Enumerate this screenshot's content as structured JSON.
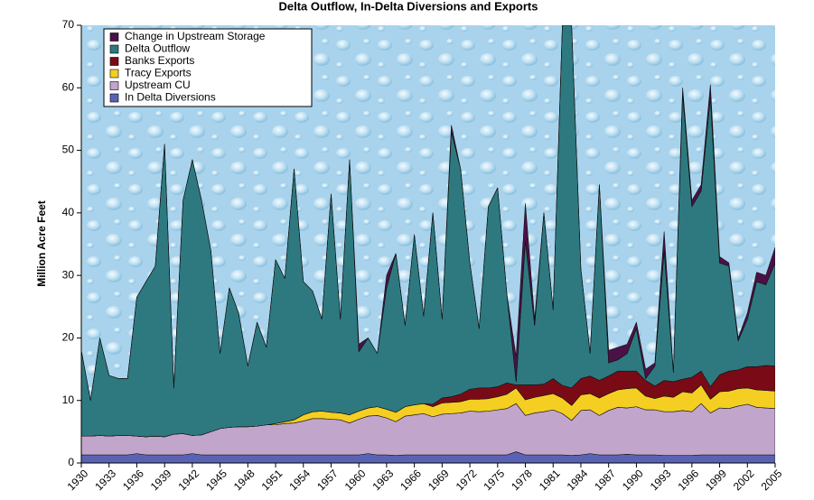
{
  "chart_data": {
    "type": "stacked_area",
    "title": "Delta Outflow, In-Delta Diversions and Exports",
    "y_label": "Million Acre Feet",
    "x": [
      1930,
      1931,
      1932,
      1933,
      1934,
      1935,
      1936,
      1937,
      1938,
      1939,
      1940,
      1941,
      1942,
      1943,
      1944,
      1945,
      1946,
      1947,
      1948,
      1949,
      1950,
      1951,
      1952,
      1953,
      1954,
      1955,
      1956,
      1957,
      1958,
      1959,
      1960,
      1961,
      1962,
      1963,
      1964,
      1965,
      1966,
      1967,
      1968,
      1969,
      1970,
      1971,
      1972,
      1973,
      1974,
      1975,
      1976,
      1977,
      1978,
      1979,
      1980,
      1981,
      1982,
      1983,
      1984,
      1985,
      1986,
      1987,
      1988,
      1989,
      1990,
      1991,
      1992,
      1993,
      1994,
      1995,
      1996,
      1997,
      1998,
      1999,
      2000,
      2001,
      2002,
      2003,
      2004,
      2005
    ],
    "series": [
      {
        "name": "In Delta Diversions",
        "color": "#5a63b3",
        "values": [
          1.3,
          1.3,
          1.3,
          1.3,
          1.3,
          1.3,
          1.5,
          1.3,
          1.3,
          1.3,
          1.3,
          1.3,
          1.5,
          1.3,
          1.3,
          1.3,
          1.3,
          1.3,
          1.3,
          1.3,
          1.3,
          1.3,
          1.3,
          1.3,
          1.3,
          1.3,
          1.3,
          1.3,
          1.3,
          1.3,
          1.3,
          1.5,
          1.3,
          1.3,
          1.2,
          1.3,
          1.3,
          1.3,
          1.3,
          1.3,
          1.3,
          1.3,
          1.3,
          1.3,
          1.3,
          1.3,
          1.3,
          1.8,
          1.3,
          1.3,
          1.3,
          1.3,
          1.3,
          1.2,
          1.3,
          1.5,
          1.3,
          1.3,
          1.3,
          1.4,
          1.3,
          1.3,
          1.3,
          1.2,
          1.2,
          1.2,
          1.2,
          1.3,
          1.3,
          1.3,
          1.3,
          1.3,
          1.3,
          1.3,
          1.3,
          1.3
        ]
      },
      {
        "name": "Upstream CU",
        "color": "#c2a5cb",
        "values": [
          3.0,
          3.0,
          3.1,
          3.0,
          3.1,
          3.1,
          2.8,
          2.9,
          3.0,
          2.9,
          3.3,
          3.4,
          2.9,
          3.2,
          3.7,
          4.2,
          4.4,
          4.5,
          4.5,
          4.6,
          4.8,
          4.8,
          5.0,
          5.1,
          5.4,
          5.8,
          5.8,
          5.7,
          5.6,
          5.1,
          5.7,
          6.0,
          6.3,
          5.9,
          5.4,
          6.2,
          6.4,
          6.6,
          6.1,
          6.5,
          6.6,
          6.7,
          7.0,
          6.9,
          7.0,
          7.2,
          7.4,
          7.7,
          6.3,
          6.7,
          6.9,
          7.2,
          6.6,
          5.6,
          7.1,
          7.0,
          6.3,
          7.1,
          7.6,
          7.4,
          7.7,
          7.2,
          7.2,
          7.0,
          7.0,
          7.2,
          7.0,
          8.2,
          6.7,
          7.5,
          7.4,
          7.8,
          8.1,
          7.6,
          7.5,
          7.4
        ]
      },
      {
        "name": "Tracy Exports",
        "color": "#f4cf22",
        "values": [
          0,
          0,
          0,
          0,
          0,
          0,
          0,
          0,
          0,
          0,
          0,
          0,
          0,
          0,
          0,
          0,
          0,
          0,
          0,
          0,
          0,
          0.2,
          0.3,
          0.5,
          1.0,
          1.1,
          1.2,
          1.1,
          1.1,
          1.3,
          1.3,
          1.3,
          1.4,
          1.4,
          1.5,
          1.5,
          1.6,
          1.6,
          1.6,
          1.8,
          1.8,
          1.8,
          1.9,
          2.0,
          2.0,
          2.1,
          2.3,
          2.5,
          2.5,
          2.5,
          2.6,
          2.6,
          2.5,
          2.4,
          2.5,
          2.6,
          2.8,
          2.7,
          2.8,
          3.1,
          3.0,
          2.2,
          1.8,
          2.5,
          2.3,
          3.0,
          3.0,
          3.0,
          2.2,
          2.6,
          2.8,
          2.8,
          2.6,
          2.8,
          2.8,
          2.8
        ]
      },
      {
        "name": "Banks Exports",
        "color": "#7a0b16",
        "values": [
          0,
          0,
          0,
          0,
          0,
          0,
          0,
          0,
          0,
          0,
          0,
          0,
          0,
          0,
          0,
          0,
          0,
          0,
          0,
          0,
          0,
          0,
          0,
          0,
          0,
          0,
          0,
          0,
          0,
          0,
          0,
          0,
          0,
          0,
          0,
          0,
          0,
          0,
          0.4,
          0.8,
          0.9,
          1.2,
          1.6,
          1.8,
          1.7,
          1.6,
          1.8,
          0.5,
          2.4,
          2.0,
          1.8,
          2.4,
          2.0,
          2.8,
          2.6,
          2.8,
          2.8,
          2.8,
          3.0,
          2.8,
          2.7,
          2.5,
          2.0,
          2.5,
          2.5,
          2.0,
          2.5,
          2.2,
          2.0,
          2.7,
          3.2,
          3.0,
          3.4,
          3.7,
          4.0,
          4.0
        ]
      },
      {
        "name": "Delta Outflow",
        "color": "#2e7980",
        "values": [
          13.7,
          5.7,
          15.6,
          9.7,
          9.1,
          9.1,
          22.2,
          24.8,
          27.2,
          46.8,
          7.4,
          37.3,
          44.1,
          37.5,
          29.0,
          12.0,
          22.3,
          18.2,
          9.7,
          16.6,
          12.4,
          26.2,
          22.9,
          40.1,
          21.3,
          19.3,
          14.7,
          34.9,
          15.0,
          40.8,
          9.5,
          11.2,
          8.5,
          19.4,
          25.4,
          13.0,
          27.2,
          14.0,
          30.6,
          12.6,
          42.4,
          36.0,
          20.2,
          9.5,
          29.0,
          31.8,
          14.2,
          0.5,
          23.0,
          9.5,
          27.4,
          11.0,
          57.6,
          58.0,
          17.5,
          3.6,
          31.3,
          2.1,
          1.8,
          2.8,
          6.8,
          0.3,
          3.2,
          20.8,
          1.5,
          45.6,
          27.3,
          28.8,
          46.3,
          17.9,
          16.8,
          4.6,
          7.6,
          13.6,
          12.9,
          16.5
        ]
      },
      {
        "name": "Change in Upstream Storage",
        "color": "#4b1147",
        "values": [
          0,
          0,
          0,
          0,
          0,
          0,
          0,
          0,
          0,
          0,
          0,
          0,
          0,
          0,
          0,
          0,
          0,
          0,
          0,
          0,
          0,
          0,
          0,
          0,
          0,
          0,
          0,
          0,
          0,
          0,
          1.2,
          0,
          0,
          2.0,
          0,
          0,
          0,
          0,
          0,
          0,
          1.0,
          0,
          0,
          0,
          0,
          0,
          0,
          4.0,
          6.0,
          1.0,
          0,
          0,
          0,
          0,
          0,
          0,
          0,
          2.0,
          2.0,
          1.5,
          1.0,
          1.5,
          0.5,
          3.0,
          0,
          1.0,
          1.0,
          1.0,
          2.0,
          1.0,
          0.5,
          0.5,
          1.0,
          1.5,
          1.5,
          2.5
        ]
      }
    ],
    "xlim": [
      1930,
      2005
    ],
    "xticks": [
      1930,
      1933,
      1936,
      1939,
      1942,
      1945,
      1948,
      1951,
      1954,
      1957,
      1960,
      1963,
      1966,
      1969,
      1972,
      1975,
      1978,
      1981,
      1984,
      1987,
      1990,
      1993,
      1996,
      1999,
      2002,
      2005
    ],
    "ylim": [
      0,
      70
    ],
    "yticks": [
      0,
      10,
      20,
      30,
      40,
      50,
      60,
      70
    ],
    "legend": "upper-left"
  }
}
